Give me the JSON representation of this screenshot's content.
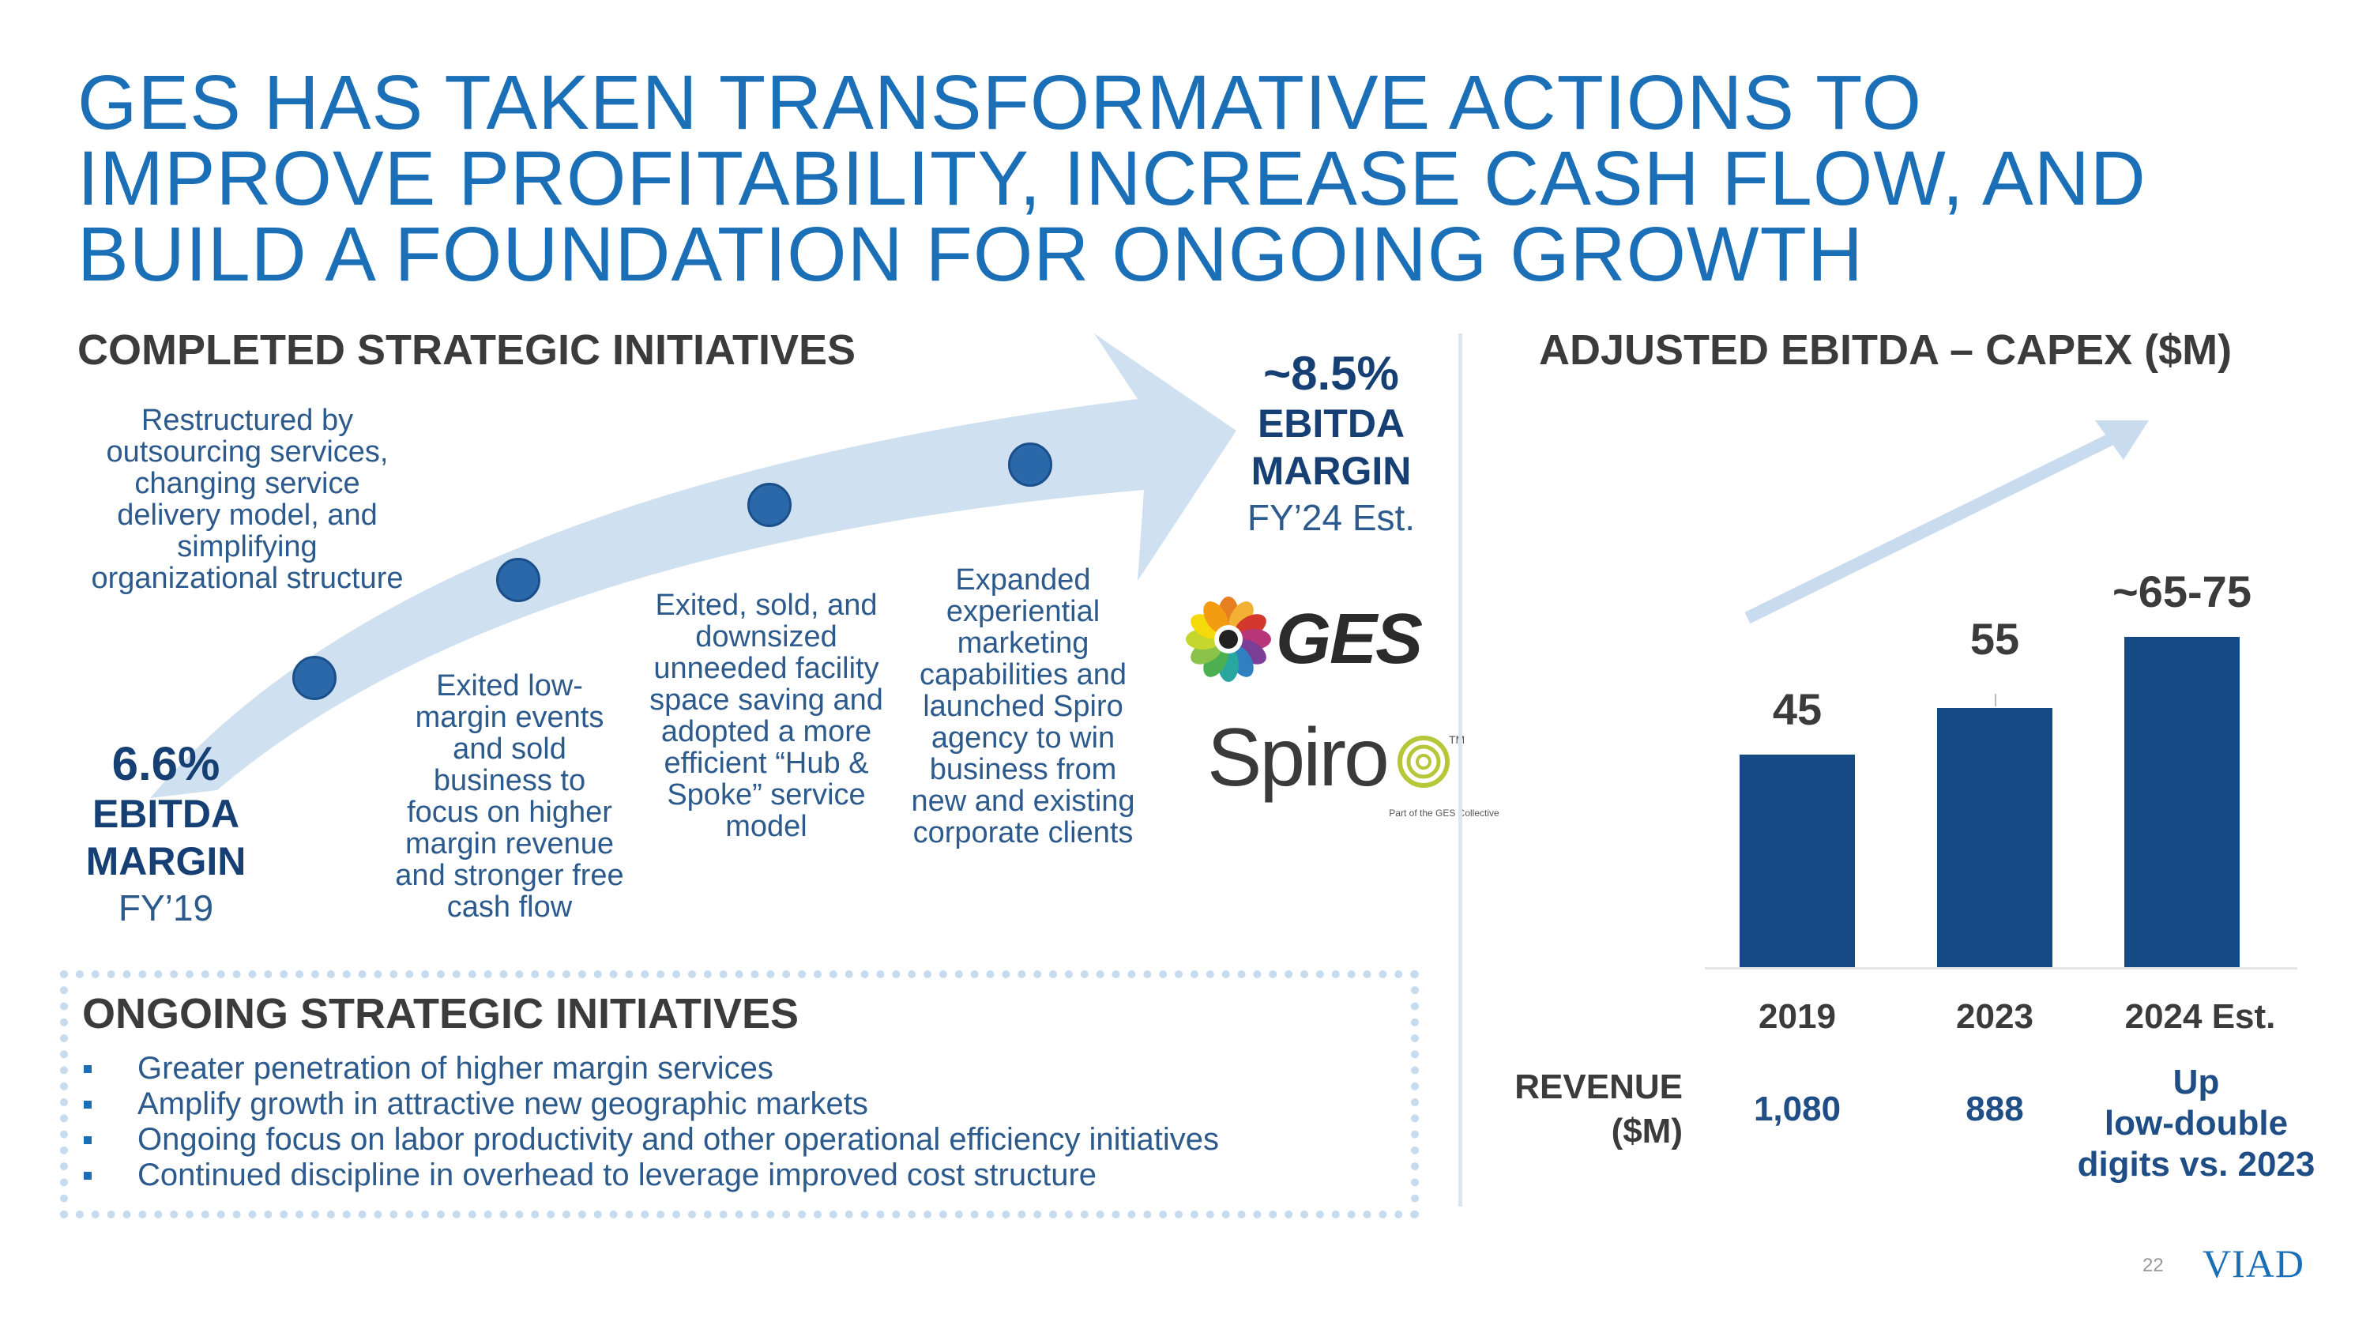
{
  "title": {
    "lines": [
      "GES HAS TAKEN TRANSFORMATIVE ACTIONS TO",
      "IMPROVE PROFITABILITY, INCREASE CASH FLOW, AND",
      "BUILD A FOUNDATION FOR ONGOING GROWTH"
    ]
  },
  "completed": {
    "heading": "COMPLETED STRATEGIC INITIATIVES",
    "start_margin": {
      "value": "6.6%",
      "label1": "EBITDA",
      "label2": "MARGIN",
      "period": "FY’19"
    },
    "end_margin": {
      "value": "~8.5%",
      "label1": "EBITDA",
      "label2": "MARGIN",
      "period": "FY’24 Est."
    },
    "initiatives": [
      "Restructured by outsourcing services, changing service delivery model, and simplifying organizational structure",
      "Exited low-margin events and sold business to focus on higher margin revenue and stronger free cash flow",
      "Exited, sold, and downsized unneeded facility space saving and adopted a more efficient “Hub & Spoke” service model",
      "Expanded experiential marketing capabilities and launched Spiro agency to win business from new and existing corporate clients"
    ],
    "logos": {
      "ges": "GES",
      "spiro": "Spiro",
      "spiro_tm": "TM",
      "spiro_tag": "Part of the GES Collective"
    }
  },
  "ongoing": {
    "heading": "ONGOING STRATEGIC INITIATIVES",
    "bullets": [
      "Greater penetration of higher margin services",
      "Amplify growth in attractive new geographic markets",
      "Ongoing focus on labor productivity and other operational efficiency initiatives",
      "Continued discipline in overhead to leverage improved cost structure"
    ]
  },
  "chart_data": {
    "type": "bar",
    "title": "ADJUSTED EBITDA – CAPEX ($M)",
    "categories": [
      "2019",
      "2023",
      "2024 Est."
    ],
    "values": [
      45,
      55,
      70
    ],
    "value_labels": [
      "45",
      "55",
      "~65-75"
    ],
    "ylim": [
      0,
      75
    ],
    "xlabel": "",
    "ylabel": "",
    "revenue_label": "REVENUE ($M)",
    "revenue_label_lines": [
      "REVENUE",
      "($M)"
    ],
    "revenue_values": [
      "1,080",
      "888",
      "Up low-double digits vs. 2023"
    ],
    "revenue_value_lines": [
      [
        "1,080"
      ],
      [
        "888"
      ],
      [
        "Up",
        "low-double",
        "digits vs. 2023"
      ]
    ]
  },
  "footer": {
    "page_number": "22",
    "brand": "VIAD"
  },
  "colors": {
    "accent": "#1b6fb6",
    "bar": "#154a84",
    "arrow": "#cfe0f0",
    "dark_text": "#3b3b3b"
  }
}
